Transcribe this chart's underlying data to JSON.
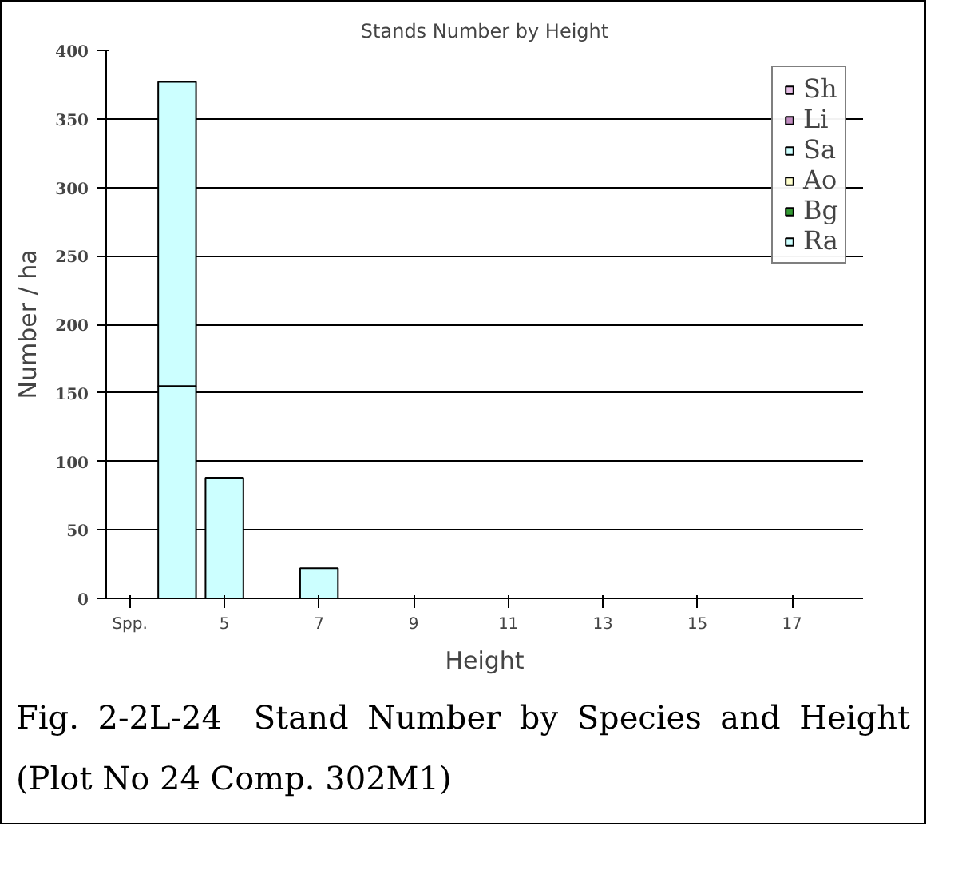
{
  "chart_data": {
    "type": "bar",
    "title": "Stands Number by Height",
    "xlabel": "Height",
    "ylabel": "Number / ha",
    "categories": [
      "Spp.",
      null,
      "5",
      null,
      "7",
      null,
      "9",
      null,
      "11",
      null,
      "13",
      null,
      "15",
      null,
      "17",
      null
    ],
    "stacked": true,
    "series": [
      {
        "name": "Ra",
        "color": "#ccffff",
        "values": [
          null,
          155,
          88,
          null,
          22,
          null,
          null,
          null,
          null,
          null,
          null,
          null,
          null,
          null,
          null,
          null
        ]
      },
      {
        "name": "Bg",
        "color": "#339933",
        "values": [
          null,
          null,
          null,
          null,
          null,
          null,
          null,
          null,
          null,
          null,
          null,
          null,
          null,
          null,
          null,
          null
        ]
      },
      {
        "name": "Ao",
        "color": "#ffffcc",
        "values": [
          null,
          null,
          null,
          null,
          null,
          null,
          null,
          null,
          null,
          null,
          null,
          null,
          null,
          null,
          null,
          null
        ]
      },
      {
        "name": "Sa",
        "color": "#ccffff",
        "values": [
          null,
          222,
          null,
          null,
          null,
          null,
          null,
          null,
          null,
          null,
          null,
          null,
          null,
          null,
          null,
          null
        ]
      },
      {
        "name": "Li",
        "color": "#c08cc0",
        "values": [
          null,
          null,
          null,
          null,
          null,
          null,
          null,
          null,
          null,
          null,
          null,
          null,
          null,
          null,
          null,
          null
        ]
      },
      {
        "name": "Sh",
        "color": "#e6bee6",
        "values": [
          null,
          null,
          null,
          null,
          null,
          null,
          null,
          null,
          null,
          null,
          null,
          null,
          null,
          null,
          null,
          null
        ]
      }
    ],
    "ylim": [
      0,
      400
    ],
    "yticks": [
      0,
      50,
      100,
      150,
      200,
      250,
      300,
      350,
      400
    ],
    "grid": "y",
    "legend": "top right",
    "annotations": [
      "Fig. 2-2L-24 Stand Number by Species and Height (Plot No 24 Comp. 302M1)"
    ]
  }
}
